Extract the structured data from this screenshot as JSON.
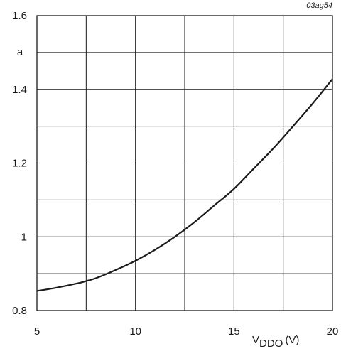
{
  "figure_id": "03ag54",
  "chart_data": {
    "type": "line",
    "title": "",
    "xlabel": {
      "main": "V",
      "sub": "DDO",
      "unit": "(V)"
    },
    "ylabel": "a",
    "xlim": [
      5,
      20
    ],
    "ylim": [
      0.8,
      1.6
    ],
    "x_ticks": [
      5,
      10,
      15,
      20
    ],
    "y_ticks": [
      0.8,
      1,
      1.2,
      1.4,
      1.6
    ],
    "x_tick_labels": [
      "5",
      "10",
      "15",
      "20"
    ],
    "y_tick_labels": [
      "0.8",
      "1",
      "1.2",
      "1.4",
      "1.6"
    ],
    "grid": true,
    "series": [
      {
        "x": [
          5,
          6,
          7,
          7.5,
          8,
          9,
          10,
          11,
          12,
          13,
          14,
          15,
          16,
          17,
          18,
          19,
          20
        ],
        "y": [
          0.853,
          0.862,
          0.873,
          0.88,
          0.888,
          0.91,
          0.935,
          0.965,
          1.0,
          1.04,
          1.085,
          1.13,
          1.185,
          1.24,
          1.3,
          1.362,
          1.428
        ]
      }
    ]
  }
}
